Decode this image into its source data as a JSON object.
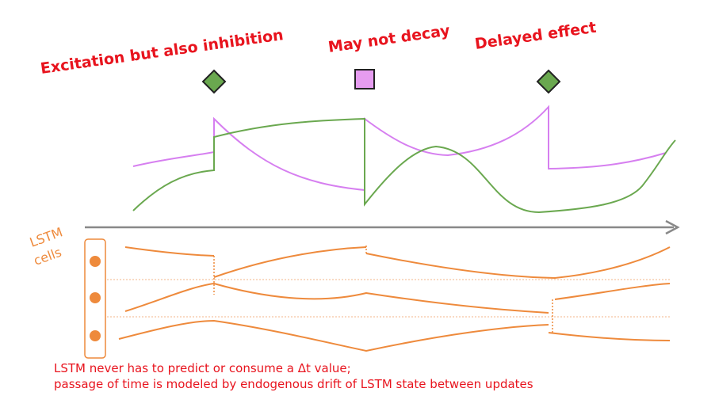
{
  "annotations": [
    "Excitation but also inhibition",
    "May not decay",
    "Delayed effect"
  ],
  "lstm_label": [
    "LSTM",
    "cells"
  ],
  "caption": [
    "LSTM never has to predict or consume a Δt value;",
    "passage of time is modeled by endogenous drift of LSTM state between updates"
  ]
}
